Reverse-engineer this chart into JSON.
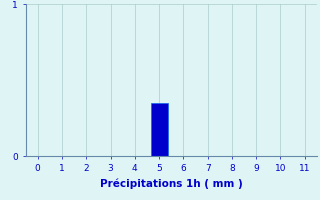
{
  "categories": [
    0,
    1,
    2,
    3,
    4,
    5,
    6,
    7,
    8,
    9,
    10,
    11
  ],
  "values": [
    0,
    0,
    0,
    0,
    0,
    0.35,
    0,
    0,
    0,
    0,
    0,
    0
  ],
  "bar_color": "#0000cc",
  "bar_edge_color": "#1166ee",
  "background_color": "#dff5f5",
  "grid_color": "#aacccc",
  "axis_color": "#6688aa",
  "text_color": "#0000cc",
  "xlabel": "Précipitations 1h ( mm )",
  "ylim": [
    0,
    1.0
  ],
  "xlim": [
    -0.5,
    11.5
  ],
  "yticks": [
    0,
    1
  ],
  "xticks": [
    0,
    1,
    2,
    3,
    4,
    5,
    6,
    7,
    8,
    9,
    10,
    11
  ],
  "xlabel_fontsize": 7.5,
  "tick_fontsize": 6.5,
  "bar_width": 0.7
}
